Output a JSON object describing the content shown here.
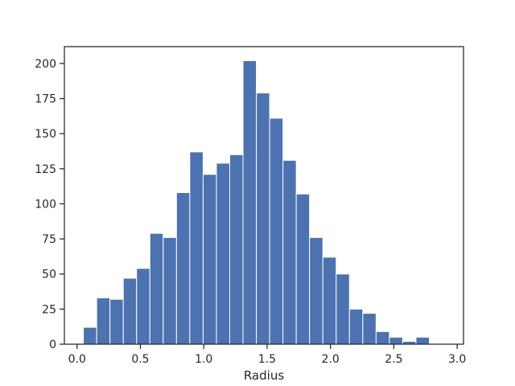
{
  "chart_data": {
    "type": "bar",
    "subtype": "histogram",
    "title": "",
    "xlabel": "Radius",
    "ylabel": "",
    "xlim": [
      -0.1,
      3.05
    ],
    "ylim": [
      0,
      212
    ],
    "bin_edges": [
      0.05,
      0.155,
      0.26,
      0.365,
      0.47,
      0.575,
      0.68,
      0.785,
      0.89,
      0.995,
      1.1,
      1.205,
      1.31,
      1.415,
      1.52,
      1.625,
      1.73,
      1.835,
      1.94,
      2.045,
      2.15,
      2.255,
      2.36,
      2.465,
      2.57,
      2.675,
      2.78,
      2.885
    ],
    "values": [
      12,
      33,
      32,
      47,
      54,
      79,
      76,
      108,
      137,
      121,
      129,
      135,
      202,
      179,
      161,
      131,
      107,
      76,
      62,
      50,
      25,
      22,
      9,
      5,
      2,
      5,
      0
    ],
    "bar_color": "#4c72b0",
    "xticks": [
      "0.0",
      "0.5",
      "1.0",
      "1.5",
      "2.0",
      "2.5",
      "3.0"
    ],
    "xtick_values": [
      0,
      0.5,
      1.0,
      1.5,
      2.0,
      2.5,
      3.0
    ],
    "yticks": [
      "0",
      "25",
      "50",
      "75",
      "100",
      "125",
      "150",
      "175",
      "200"
    ],
    "ytick_values": [
      0,
      25,
      50,
      75,
      100,
      125,
      150,
      175,
      200
    ],
    "grid": false,
    "legend": "none"
  }
}
